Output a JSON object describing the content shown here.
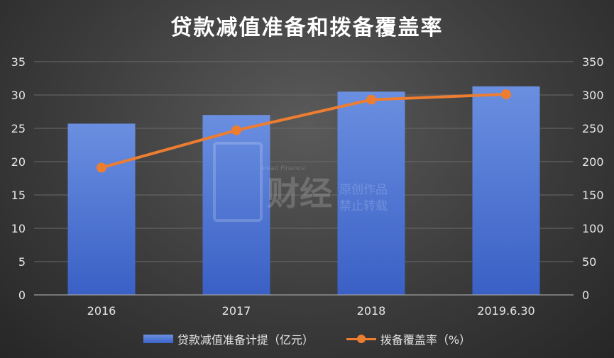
{
  "title": "贷款减值准备和拨备覆盖率",
  "watermark": {
    "brand": "财经",
    "sub_en": "Bread Finance",
    "line1": "原创作品",
    "line2": "禁止转载"
  },
  "colors": {
    "bar": "#4472c4",
    "line": "#ed7d31",
    "text": "#e6e6e6",
    "grid": "#6a6a6a"
  },
  "legend": {
    "bar_label": "贷款减值准备计提（亿元）",
    "line_label": "拨备覆盖率（%）"
  },
  "chart_data": {
    "type": "bar",
    "title": "贷款减值准备和拨备覆盖率",
    "categories": [
      "2016",
      "2017",
      "2018",
      "2019.6.30"
    ],
    "series": [
      {
        "name": "贷款减值准备计提（亿元）",
        "type": "bar",
        "axis": "left",
        "values": [
          25.7,
          27.0,
          30.5,
          31.3
        ]
      },
      {
        "name": "拨备覆盖率（%）",
        "type": "line",
        "axis": "right",
        "values": [
          191,
          247,
          293,
          301
        ]
      }
    ],
    "y_left": {
      "min": 0,
      "max": 35,
      "ticks": [
        0,
        5,
        10,
        15,
        20,
        25,
        30,
        35
      ]
    },
    "y_right": {
      "min": 0,
      "max": 350,
      "ticks": [
        0,
        50,
        100,
        150,
        200,
        250,
        300,
        350
      ]
    },
    "grid": true,
    "legend_position": "bottom"
  }
}
